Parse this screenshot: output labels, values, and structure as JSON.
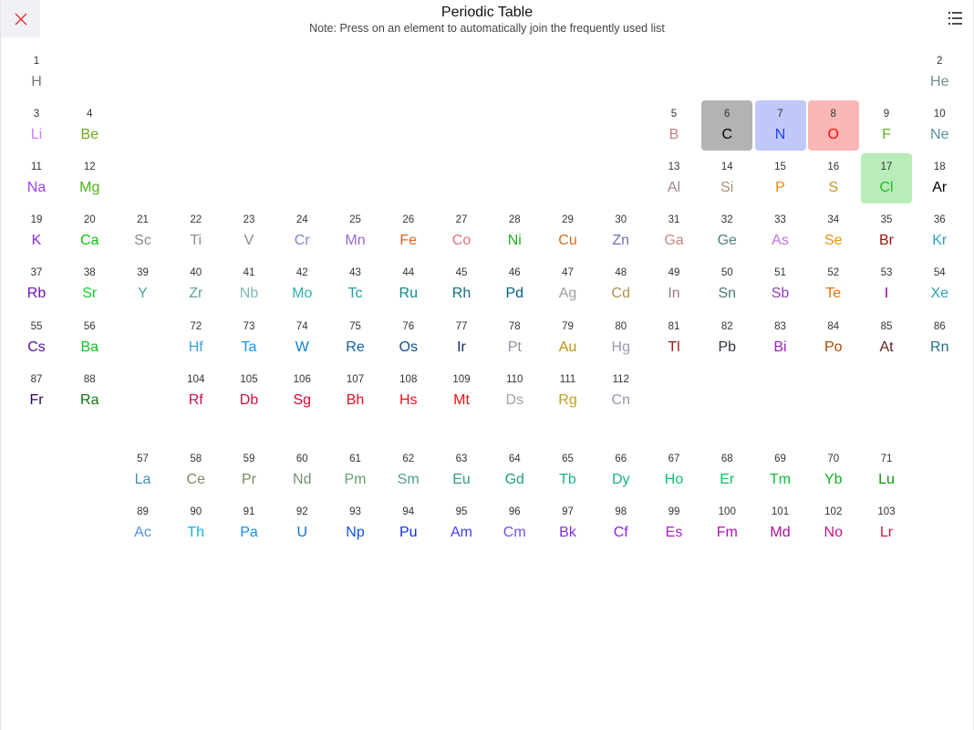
{
  "header": {
    "title": "Periodic Table",
    "note": "Note: Press on an element to automatically join the frequently used list",
    "close_icon": "close-x-icon",
    "close_color": "#e8282e",
    "menu_icon": "list-icon"
  },
  "elements": [
    {
      "n": 1,
      "s": "H",
      "c": "#7a7a7a"
    },
    {
      "n": 2,
      "s": "He",
      "c": "#6b8e8e"
    },
    {
      "n": 3,
      "s": "Li",
      "c": "#c77dff"
    },
    {
      "n": 4,
      "s": "Be",
      "c": "#6aaa1f"
    },
    {
      "n": 5,
      "s": "B",
      "c": "#c08080"
    },
    {
      "n": 6,
      "s": "C",
      "c": "#000000",
      "hl": "#b3b3b3"
    },
    {
      "n": 7,
      "s": "N",
      "c": "#1f3fff",
      "hl": "#c0c8f8"
    },
    {
      "n": 8,
      "s": "O",
      "c": "#ff0d0d",
      "hl": "#fbb6b6"
    },
    {
      "n": 9,
      "s": "F",
      "c": "#5fb31f"
    },
    {
      "n": 10,
      "s": "Ne",
      "c": "#5a8fa0"
    },
    {
      "n": 11,
      "s": "Na",
      "c": "#a040f0"
    },
    {
      "n": 12,
      "s": "Mg",
      "c": "#4caf1a"
    },
    {
      "n": 13,
      "s": "Al",
      "c": "#a08888"
    },
    {
      "n": 14,
      "s": "Si",
      "c": "#a89078"
    },
    {
      "n": 15,
      "s": "P",
      "c": "#ff8000"
    },
    {
      "n": 16,
      "s": "S",
      "c": "#c89020"
    },
    {
      "n": 17,
      "s": "Cl",
      "c": "#1fbf1f",
      "hl": "#b8ecb8"
    },
    {
      "n": 18,
      "s": "Ar",
      "c": "#000000"
    },
    {
      "n": 19,
      "s": "K",
      "c": "#8a2be2"
    },
    {
      "n": 20,
      "s": "Ca",
      "c": "#10c010"
    },
    {
      "n": 21,
      "s": "Sc",
      "c": "#8a8a8a"
    },
    {
      "n": 22,
      "s": "Ti",
      "c": "#909090"
    },
    {
      "n": 23,
      "s": "V",
      "c": "#8a8a8a"
    },
    {
      "n": 24,
      "s": "Cr",
      "c": "#7a88c8"
    },
    {
      "n": 25,
      "s": "Mn",
      "c": "#9c6ad0"
    },
    {
      "n": 26,
      "s": "Fe",
      "c": "#e06020"
    },
    {
      "n": 27,
      "s": "Co",
      "c": "#e07080"
    },
    {
      "n": 28,
      "s": "Ni",
      "c": "#20b020"
    },
    {
      "n": 29,
      "s": "Cu",
      "c": "#c87020"
    },
    {
      "n": 30,
      "s": "Zn",
      "c": "#7070b0"
    },
    {
      "n": 31,
      "s": "Ga",
      "c": "#c08888"
    },
    {
      "n": 32,
      "s": "Ge",
      "c": "#508080"
    },
    {
      "n": 33,
      "s": "As",
      "c": "#c070e0"
    },
    {
      "n": 34,
      "s": "Se",
      "c": "#f09010"
    },
    {
      "n": 35,
      "s": "Br",
      "c": "#a01010"
    },
    {
      "n": 36,
      "s": "Kr",
      "c": "#30a0c0"
    },
    {
      "n": 37,
      "s": "Rb",
      "c": "#7010b0"
    },
    {
      "n": 38,
      "s": "Sr",
      "c": "#10d020"
    },
    {
      "n": 39,
      "s": "Y",
      "c": "#50a0a0"
    },
    {
      "n": 40,
      "s": "Zr",
      "c": "#60a0a0"
    },
    {
      "n": 41,
      "s": "Nb",
      "c": "#80b8b8"
    },
    {
      "n": 42,
      "s": "Mo",
      "c": "#30b0a8"
    },
    {
      "n": 43,
      "s": "Tc",
      "c": "#20a0a0"
    },
    {
      "n": 44,
      "s": "Ru",
      "c": "#108888"
    },
    {
      "n": 45,
      "s": "Rh",
      "c": "#107080"
    },
    {
      "n": 46,
      "s": "Pd",
      "c": "#006080"
    },
    {
      "n": 47,
      "s": "Ag",
      "c": "#a0a0a0"
    },
    {
      "n": 48,
      "s": "Cd",
      "c": "#b09050"
    },
    {
      "n": 49,
      "s": "In",
      "c": "#a07878"
    },
    {
      "n": 50,
      "s": "Sn",
      "c": "#507878"
    },
    {
      "n": 51,
      "s": "Sb",
      "c": "#9040b0"
    },
    {
      "n": 52,
      "s": "Te",
      "c": "#e07000"
    },
    {
      "n": 53,
      "s": "I",
      "c": "#940094"
    },
    {
      "n": 54,
      "s": "Xe",
      "c": "#30a0b0"
    },
    {
      "n": 55,
      "s": "Cs",
      "c": "#5010a0"
    },
    {
      "n": 56,
      "s": "Ba",
      "c": "#10c020"
    },
    {
      "n": 57,
      "s": "La",
      "c": "#4090c0"
    },
    {
      "n": 58,
      "s": "Ce",
      "c": "#808860"
    },
    {
      "n": 59,
      "s": "Pr",
      "c": "#708860"
    },
    {
      "n": 60,
      "s": "Nd",
      "c": "#709070"
    },
    {
      "n": 61,
      "s": "Pm",
      "c": "#60a070"
    },
    {
      "n": 62,
      "s": "Sm",
      "c": "#50a080"
    },
    {
      "n": 63,
      "s": "Eu",
      "c": "#30a070"
    },
    {
      "n": 64,
      "s": "Gd",
      "c": "#20a070"
    },
    {
      "n": 65,
      "s": "Tb",
      "c": "#20b090"
    },
    {
      "n": 66,
      "s": "Dy",
      "c": "#20b080"
    },
    {
      "n": 67,
      "s": "Ho",
      "c": "#10c070"
    },
    {
      "n": 68,
      "s": "Er",
      "c": "#10c060"
    },
    {
      "n": 69,
      "s": "Tm",
      "c": "#10c040"
    },
    {
      "n": 70,
      "s": "Yb",
      "c": "#10b020"
    },
    {
      "n": 71,
      "s": "Lu",
      "c": "#109010"
    },
    {
      "n": 72,
      "s": "Hf",
      "c": "#40a0e0"
    },
    {
      "n": 73,
      "s": "Ta",
      "c": "#2090f0"
    },
    {
      "n": 74,
      "s": "W",
      "c": "#1080d0"
    },
    {
      "n": 75,
      "s": "Re",
      "c": "#1060a0"
    },
    {
      "n": 76,
      "s": "Os",
      "c": "#105090"
    },
    {
      "n": 77,
      "s": "Ir",
      "c": "#103060"
    },
    {
      "n": 78,
      "s": "Pt",
      "c": "#9090a0"
    },
    {
      "n": 79,
      "s": "Au",
      "c": "#c09010"
    },
    {
      "n": 80,
      "s": "Hg",
      "c": "#9898b0"
    },
    {
      "n": 81,
      "s": "Tl",
      "c": "#a01818"
    },
    {
      "n": 82,
      "s": "Pb",
      "c": "#303040"
    },
    {
      "n": 83,
      "s": "Bi",
      "c": "#a020c0"
    },
    {
      "n": 84,
      "s": "Po",
      "c": "#b04800"
    },
    {
      "n": 85,
      "s": "At",
      "c": "#602020"
    },
    {
      "n": 86,
      "s": "Rn",
      "c": "#207090"
    },
    {
      "n": 87,
      "s": "Fr",
      "c": "#300060"
    },
    {
      "n": 88,
      "s": "Ra",
      "c": "#107010"
    },
    {
      "n": 89,
      "s": "Ac",
      "c": "#5090e0"
    },
    {
      "n": 90,
      "s": "Th",
      "c": "#10b0f0"
    },
    {
      "n": 91,
      "s": "Pa",
      "c": "#1090f0"
    },
    {
      "n": 92,
      "s": "U",
      "c": "#1070f0"
    },
    {
      "n": 93,
      "s": "Np",
      "c": "#1050f0"
    },
    {
      "n": 94,
      "s": "Pu",
      "c": "#1030e0"
    },
    {
      "n": 95,
      "s": "Am",
      "c": "#4040f0"
    },
    {
      "n": 96,
      "s": "Cm",
      "c": "#7050f0"
    },
    {
      "n": 97,
      "s": "Bk",
      "c": "#8030e0"
    },
    {
      "n": 98,
      "s": "Cf",
      "c": "#9020e0"
    },
    {
      "n": 99,
      "s": "Es",
      "c": "#b020d0"
    },
    {
      "n": 100,
      "s": "Fm",
      "c": "#b010b0"
    },
    {
      "n": 101,
      "s": "Md",
      "c": "#b01090"
    },
    {
      "n": 102,
      "s": "No",
      "c": "#d01080"
    },
    {
      "n": 103,
      "s": "Lr",
      "c": "#e01040"
    },
    {
      "n": 104,
      "s": "Rf",
      "c": "#d01050"
    },
    {
      "n": 105,
      "s": "Db",
      "c": "#d01040"
    },
    {
      "n": 106,
      "s": "Sg",
      "c": "#e00030"
    },
    {
      "n": 107,
      "s": "Bh",
      "c": "#e01020"
    },
    {
      "n": 108,
      "s": "Hs",
      "c": "#f01020"
    },
    {
      "n": 109,
      "s": "Mt",
      "c": "#f01010"
    },
    {
      "n": 110,
      "s": "Ds",
      "c": "#a0a0b0"
    },
    {
      "n": 111,
      "s": "Rg",
      "c": "#c0a020"
    },
    {
      "n": 112,
      "s": "Cn",
      "c": "#9898b0"
    }
  ]
}
